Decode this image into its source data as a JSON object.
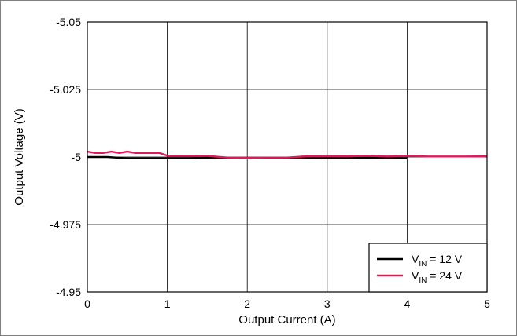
{
  "chart_data": {
    "type": "line",
    "title": "",
    "xlabel": "Output Current (A)",
    "ylabel": "Output Voltage (V)",
    "xlim": [
      0,
      5
    ],
    "ylim": [
      -4.95,
      -5.05
    ],
    "y_axis_inverted": true,
    "x_ticks": [
      0,
      1,
      2,
      3,
      4,
      5
    ],
    "x_tick_labels": [
      "0",
      "1",
      "2",
      "3",
      "4",
      "5"
    ],
    "y_ticks": [
      -5.05,
      -5.025,
      -5,
      -4.975,
      -4.95
    ],
    "y_tick_labels": [
      "-5.05",
      "-5.025",
      "-5",
      "-4.975",
      "-4.95"
    ],
    "grid": true,
    "legend_position": "bottom-right",
    "series": [
      {
        "name_main": "V",
        "name_sub": "IN",
        "name_rest": " = 12 V",
        "color": "#000000",
        "x": [
          0,
          0.25,
          0.5,
          0.75,
          1.0,
          1.25,
          1.5,
          1.75,
          2.0,
          2.25,
          2.5,
          2.75,
          3.0,
          3.25,
          3.5,
          3.75,
          4.0
        ],
        "y": [
          -5.0,
          -5.0,
          -4.9995,
          -4.9995,
          -4.9995,
          -4.9995,
          -4.9997,
          -4.9995,
          -4.9995,
          -4.9995,
          -4.9995,
          -4.9995,
          -4.9996,
          -4.9995,
          -4.9997,
          -4.9996,
          -4.9995
        ]
      },
      {
        "name_main": "V",
        "name_sub": "IN",
        "name_rest": " = 24 V",
        "color": "#e0195b",
        "x": [
          0,
          0.1,
          0.2,
          0.3,
          0.4,
          0.5,
          0.6,
          0.75,
          0.9,
          1.0,
          1.25,
          1.5,
          1.75,
          2.0,
          2.25,
          2.5,
          2.75,
          3.0,
          3.25,
          3.5,
          3.75,
          4.0,
          4.1,
          4.25,
          4.5,
          4.75,
          5.0
        ],
        "y": [
          -5.002,
          -5.0015,
          -5.0015,
          -5.002,
          -5.0015,
          -5.002,
          -5.0015,
          -5.0015,
          -5.0015,
          -5.0005,
          -5.0005,
          -5.0004,
          -4.9998,
          -4.9997,
          -4.9998,
          -4.9998,
          -5.0003,
          -5.0003,
          -5.0003,
          -5.0004,
          -5.0002,
          -5.0004,
          -5.0004,
          -5.0002,
          -5.0002,
          -5.0002,
          -5.0003
        ]
      }
    ]
  }
}
